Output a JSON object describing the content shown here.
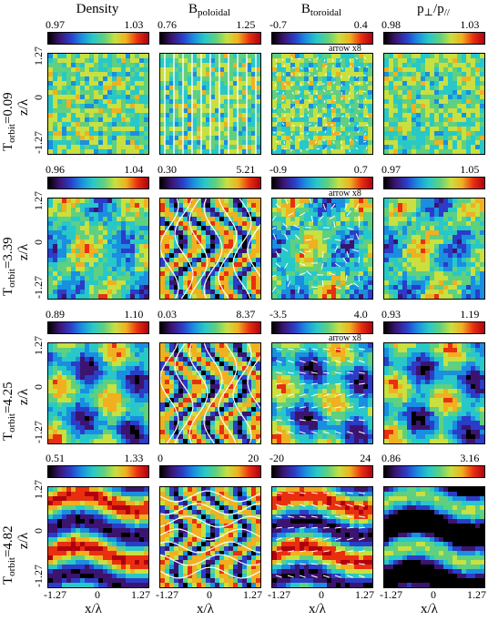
{
  "columns": [
    {
      "title_main": "Density",
      "title_sub": ""
    },
    {
      "title_main": "B",
      "title_sub": "poloidal"
    },
    {
      "title_main": "B",
      "title_sub": "toroidal"
    },
    {
      "title_main": "p",
      "title_sub": "⊥",
      "title_mid": "/p",
      "title_sub2": "//"
    }
  ],
  "rows": [
    {
      "label_main": "T",
      "label_sub": "orbit",
      "label_val": "=0.09",
      "ranges": [
        [
          "0.97",
          "1.03"
        ],
        [
          "0.76",
          "1.25"
        ],
        [
          "-0.7",
          "0.4"
        ],
        [
          "0.98",
          "1.03"
        ]
      ],
      "arrow_note": "arrow x8"
    },
    {
      "label_main": "T",
      "label_sub": "orbit",
      "label_val": "=3.39",
      "ranges": [
        [
          "0.96",
          "1.04"
        ],
        [
          "0.30",
          "5.21"
        ],
        [
          "-0.9",
          "0.7"
        ],
        [
          "0.97",
          "1.05"
        ]
      ],
      "arrow_note": "arrow x8"
    },
    {
      "label_main": "T",
      "label_sub": "orbit",
      "label_val": "=4.25",
      "ranges": [
        [
          "0.89",
          "1.10"
        ],
        [
          "0.03",
          "8.37"
        ],
        [
          "-3.5",
          "4.0"
        ],
        [
          "0.93",
          "1.19"
        ]
      ],
      "arrow_note": "arrow x8"
    },
    {
      "label_main": "T",
      "label_sub": "orbit",
      "label_val": "=4.82",
      "ranges": [
        [
          "0.51",
          "1.33"
        ],
        [
          "0",
          "20"
        ],
        [
          "-20",
          "24"
        ],
        [
          "0.86",
          "3.16"
        ]
      ],
      "arrow_note": ""
    }
  ],
  "axes": {
    "ylabel": "z/λ",
    "xlabel": "x/λ",
    "yticks": [
      "1.27",
      "0",
      "-1.27"
    ],
    "xticks": [
      "-1.27",
      "0",
      "1.27"
    ]
  },
  "colormap": [
    "#000000",
    "#3b1470",
    "#2b3cc8",
    "#1a8ee0",
    "#28c8c8",
    "#5fd080",
    "#c8e040",
    "#f0b020",
    "#e83010",
    "#b00010"
  ]
}
